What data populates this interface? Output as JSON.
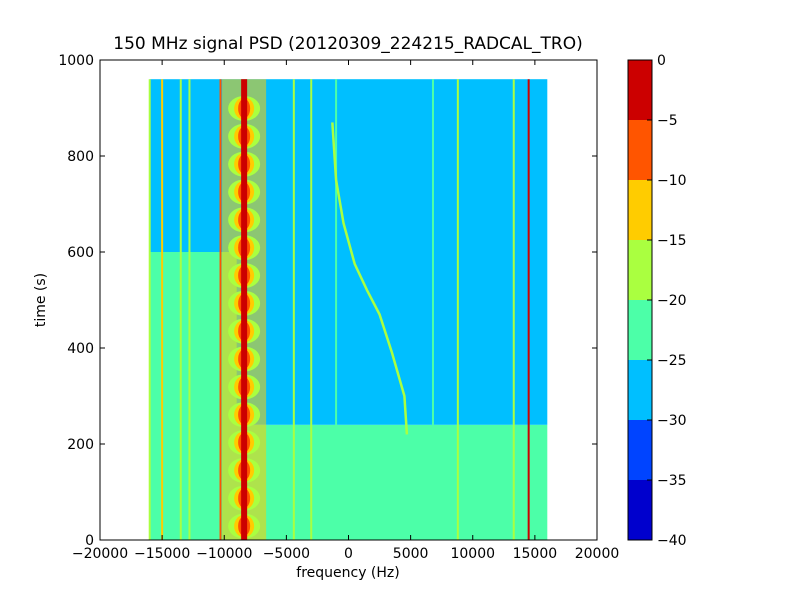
{
  "chart_data": {
    "type": "heatmap",
    "title": "150 MHz signal PSD (20120309_224215_RADCAL_TRO)",
    "xlabel": "frequency (Hz)",
    "ylabel": "time (s)",
    "xlim": [
      -20000,
      20000
    ],
    "ylim": [
      0,
      1000
    ],
    "x_ticks": [
      -20000,
      -15000,
      -10000,
      -5000,
      0,
      5000,
      10000,
      15000,
      20000
    ],
    "x_tick_labels": [
      "−20000",
      "−15000",
      "−10000",
      "−5000",
      "0",
      "5000",
      "10000",
      "15000",
      "20000"
    ],
    "y_ticks": [
      0,
      200,
      400,
      600,
      800,
      1000
    ],
    "y_tick_labels": [
      "0",
      "200",
      "400",
      "600",
      "800",
      "1000"
    ],
    "data_extent": {
      "freq_min": -16000,
      "freq_max": 16000,
      "time_min": 0,
      "time_max": 960
    },
    "background_level_by_time": [
      {
        "t_from": 0,
        "t_to": 240,
        "level_db": -22.5
      },
      {
        "t_from": 240,
        "t_to": 960,
        "level_db": -27.5
      }
    ],
    "background_level_left_band": {
      "freq_from": -16000,
      "freq_to": -9000,
      "t_from": 0,
      "t_to": 600,
      "level_db": -22.5
    },
    "features": [
      {
        "type": "strong_carrier",
        "freq": -8400,
        "level_db": -2.5,
        "modulation_period_s": 58
      },
      {
        "type": "line",
        "freq": -10300,
        "level_db": -7.5
      },
      {
        "type": "line",
        "freq": -12800,
        "level_db": -17.5
      },
      {
        "type": "line",
        "freq": -15000,
        "level_db": -12.5
      },
      {
        "type": "line",
        "freq": -16000,
        "level_db": -17.5
      },
      {
        "type": "line",
        "freq": -13500,
        "level_db": -17.5
      },
      {
        "type": "line",
        "freq": -4400,
        "level_db": -17.5
      },
      {
        "type": "line",
        "freq": -3000,
        "level_db": -17.5
      },
      {
        "type": "line",
        "freq": -1000,
        "level_db": -22.5
      },
      {
        "type": "line",
        "freq": 6800,
        "level_db": -22.5
      },
      {
        "type": "line",
        "freq": 8800,
        "level_db": -17.5
      },
      {
        "type": "line",
        "freq": 13300,
        "level_db": -17.5
      },
      {
        "type": "line",
        "freq": 14500,
        "level_db": -2.5
      },
      {
        "type": "chirp",
        "level_db": -17.5,
        "points": [
          [
            -1300,
            870
          ],
          [
            -1000,
            750
          ],
          [
            -400,
            660
          ],
          [
            500,
            575
          ],
          [
            1500,
            520
          ],
          [
            2500,
            470
          ],
          [
            3500,
            390
          ],
          [
            4500,
            300
          ],
          [
            4700,
            220
          ]
        ]
      }
    ],
    "colorbar": {
      "vmin": -40,
      "vmax": 0,
      "ticks": [
        0,
        -5,
        -10,
        -15,
        -20,
        -25,
        -30,
        -35,
        -40
      ],
      "tick_labels": [
        "0",
        "−5",
        "−10",
        "−15",
        "−20",
        "−25",
        "−30",
        "−35",
        "−40"
      ],
      "levels": [
        {
          "from": -40,
          "to": -35,
          "color": "#0000cd"
        },
        {
          "from": -35,
          "to": -30,
          "color": "#0044ff"
        },
        {
          "from": -30,
          "to": -25,
          "color": "#00bfff"
        },
        {
          "from": -25,
          "to": -20,
          "color": "#4cffa8"
        },
        {
          "from": -20,
          "to": -15,
          "color": "#aaff40"
        },
        {
          "from": -15,
          "to": -10,
          "color": "#ffcc00"
        },
        {
          "from": -10,
          "to": -5,
          "color": "#ff5500"
        },
        {
          "from": -5,
          "to": 0,
          "color": "#cc0000"
        }
      ]
    }
  }
}
